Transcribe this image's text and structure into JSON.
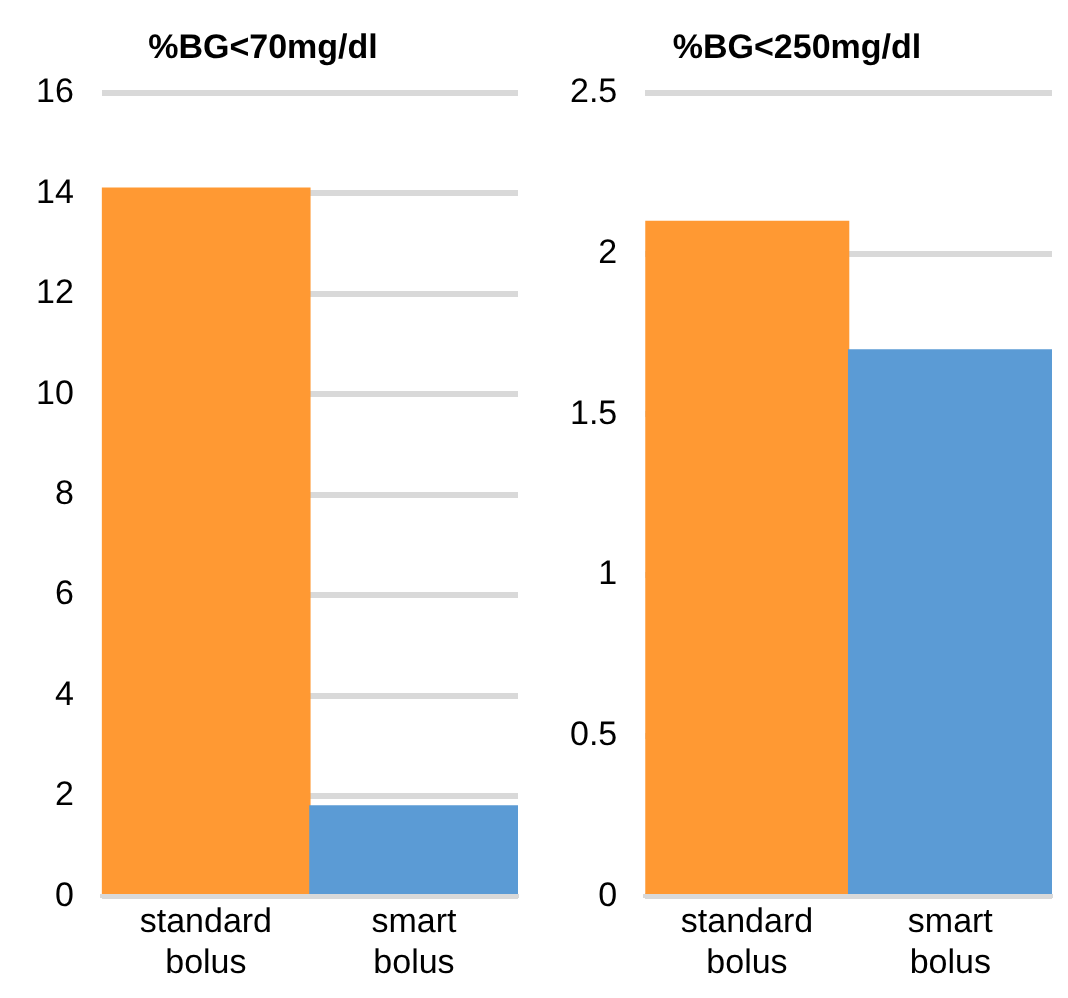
{
  "chart_data": [
    {
      "type": "bar",
      "title": "%BG<70mg/dl",
      "categories": [
        "standard bolus",
        "smart bolus"
      ],
      "values": [
        14.1,
        1.8
      ],
      "colors": [
        "#ff9933",
        "#5b9bd5"
      ],
      "ylim": [
        0,
        16
      ],
      "yticks": [
        0,
        2,
        4,
        6,
        8,
        10,
        12,
        14,
        16
      ],
      "grid": "y",
      "legend": false
    },
    {
      "type": "bar",
      "title": "%BG<250mg/dl",
      "categories": [
        "standard bolus",
        "smart bolus"
      ],
      "values": [
        2.1,
        1.7
      ],
      "colors": [
        "#ff9933",
        "#5b9bd5"
      ],
      "ylim": [
        0,
        2.5
      ],
      "yticks": [
        0,
        0.5,
        1,
        1.5,
        2,
        2.5
      ],
      "grid": "y",
      "legend": false
    }
  ]
}
